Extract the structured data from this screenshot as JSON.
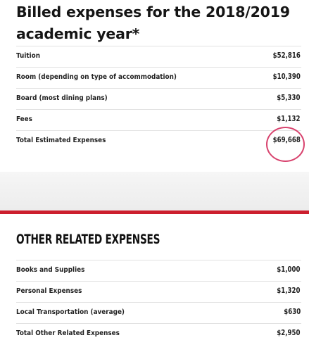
{
  "billed": {
    "title": "Billed expenses for the 2018/2019 academic year*",
    "rows": [
      {
        "label": "Tuition",
        "amount": "$52,816"
      },
      {
        "label": "Room (depending on type of accommodation)",
        "amount": "$10,390"
      },
      {
        "label": "Board (most dining plans)",
        "amount": "$5,330"
      },
      {
        "label": "Fees",
        "amount": "$1,132"
      },
      {
        "label": "Total Estimated Expenses",
        "amount": "$69,668"
      }
    ]
  },
  "other": {
    "title": "OTHER RELATED EXPENSES",
    "rows": [
      {
        "label": "Books and Supplies",
        "amount": "$1,000"
      },
      {
        "label": "Personal Expenses",
        "amount": "$1,320"
      },
      {
        "label": "Local Transportation (average)",
        "amount": "$630"
      },
      {
        "label": "Total Other Related Expenses",
        "amount": "$2,950"
      }
    ]
  },
  "colors": {
    "accent_red": "#cc1f2e",
    "highlight_circle": "#d8436e"
  }
}
